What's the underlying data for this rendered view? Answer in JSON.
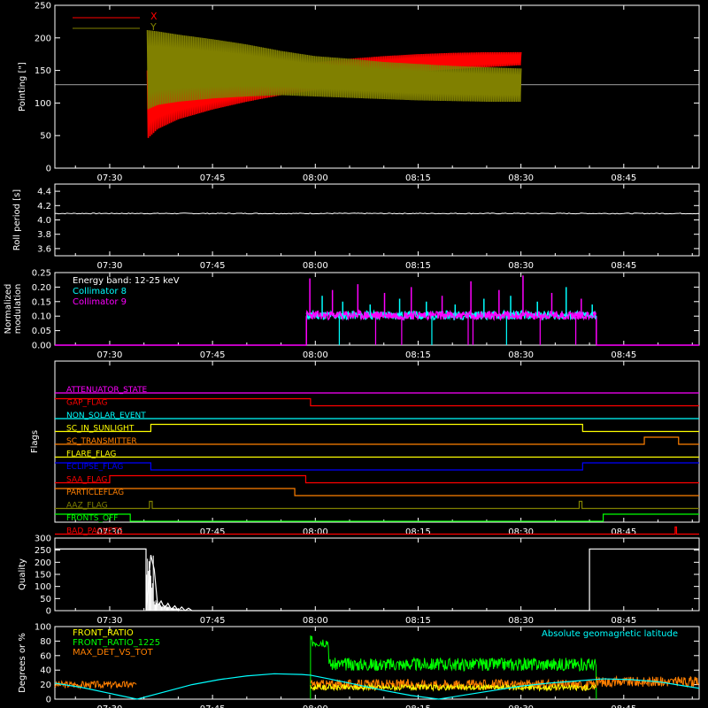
{
  "time_ticks": [
    "07:30",
    "07:45",
    "08:00",
    "08:15",
    "08:30",
    "08:45"
  ],
  "time_range_min": [
    442,
    536
  ],
  "colors": {
    "axis": "#ffffff",
    "red": "#ff0000",
    "olive": "#808000",
    "cyan": "#00ffff",
    "magenta": "#ff00ff",
    "green": "#00ff00",
    "orange": "#ff7f00",
    "yellow": "#ffff00",
    "blue": "#0000ff",
    "white": "#ffffff"
  },
  "chart_data": [
    {
      "id": "pointing",
      "type": "line",
      "ylabel": "Pointing [\"]",
      "ylim": [
        0,
        250
      ],
      "yticks": [
        0,
        50,
        100,
        150,
        200,
        250
      ],
      "legend": [
        {
          "name": "X",
          "color": "#ff0000"
        },
        {
          "name": "Y",
          "color": "#808000"
        }
      ],
      "legend_placement": "top-left",
      "reference_line": 128,
      "series": [
        {
          "name": "X",
          "color": "#ff0000",
          "x": [
            455.5,
            457,
            460,
            465,
            470,
            475,
            480,
            485,
            490,
            495,
            500,
            505,
            510
          ],
          "low": [
            45,
            60,
            75,
            90,
            102,
            112,
            120,
            130,
            140,
            148,
            152,
            155,
            158
          ],
          "high": [
            150,
            148,
            145,
            143,
            148,
            155,
            162,
            168,
            172,
            175,
            177,
            178,
            178
          ]
        },
        {
          "name": "Y",
          "color": "#808000",
          "x": [
            455.5,
            457,
            460,
            465,
            470,
            475,
            480,
            485,
            490,
            495,
            500,
            505,
            510
          ],
          "low": [
            90,
            97,
            102,
            107,
            110,
            112,
            110,
            108,
            106,
            104,
            103,
            102,
            102
          ],
          "high": [
            212,
            210,
            205,
            198,
            190,
            180,
            172,
            168,
            163,
            160,
            157,
            155,
            153
          ]
        }
      ]
    },
    {
      "id": "roll",
      "type": "line",
      "ylabel": "Roll period [s]",
      "ylim": [
        3.5,
        4.5
      ],
      "yticks": [
        3.6,
        3.8,
        4.0,
        4.2,
        4.4
      ],
      "series": [
        {
          "color": "#ffffff",
          "x": [
            442,
            536
          ],
          "y": [
            4.09,
            4.09
          ]
        }
      ]
    },
    {
      "id": "modulation",
      "type": "line",
      "ylabel": "Normalized modulation",
      "ylim": [
        0,
        0.25
      ],
      "yticks": [
        0.0,
        0.05,
        0.1,
        0.15,
        0.2,
        0.25
      ],
      "annotation": "Energy band: 12-25 keV",
      "legend": [
        {
          "name": "Collimator 8",
          "color": "#00ffff"
        },
        {
          "name": "Collimator 9",
          "color": "#ff00ff"
        }
      ],
      "legend_placement": "top-left",
      "active_range": [
        478.7,
        521
      ],
      "baseline": 0.1,
      "spikes": [
        {
          "x": 479.2,
          "y": 0.23
        },
        {
          "x": 481.0,
          "y": 0.17
        },
        {
          "x": 482.5,
          "y": 0.19
        },
        {
          "x": 484.0,
          "y": 0.15
        },
        {
          "x": 486.2,
          "y": 0.21
        },
        {
          "x": 488.0,
          "y": 0.14
        },
        {
          "x": 490.1,
          "y": 0.18
        },
        {
          "x": 492.3,
          "y": 0.16
        },
        {
          "x": 494.0,
          "y": 0.2
        },
        {
          "x": 496.2,
          "y": 0.15
        },
        {
          "x": 498.5,
          "y": 0.17
        },
        {
          "x": 500.4,
          "y": 0.14
        },
        {
          "x": 502.7,
          "y": 0.22
        },
        {
          "x": 504.6,
          "y": 0.16
        },
        {
          "x": 506.8,
          "y": 0.19
        },
        {
          "x": 508.5,
          "y": 0.17
        },
        {
          "x": 510.3,
          "y": 0.24
        },
        {
          "x": 512.4,
          "y": 0.15
        },
        {
          "x": 514.5,
          "y": 0.18
        },
        {
          "x": 516.6,
          "y": 0.2
        },
        {
          "x": 518.8,
          "y": 0.16
        },
        {
          "x": 520.4,
          "y": 0.14
        }
      ],
      "dips": [
        {
          "x": 483.5,
          "y": 0.0
        },
        {
          "x": 488.8,
          "y": 0.0
        },
        {
          "x": 492.6,
          "y": 0.0
        },
        {
          "x": 497.0,
          "y": 0.0
        },
        {
          "x": 502.3,
          "y": 0.0
        },
        {
          "x": 503.0,
          "y": 0.0
        },
        {
          "x": 507.9,
          "y": 0.0
        },
        {
          "x": 512.8,
          "y": 0.0
        },
        {
          "x": 518.0,
          "y": 0.0
        }
      ]
    },
    {
      "id": "flags",
      "type": "line",
      "ylabel": "Flags",
      "flags": [
        {
          "name": "ATTENUATOR_STATE",
          "color": "#ff00ff",
          "segments": [
            [
              442,
              0
            ],
            [
              536,
              0
            ]
          ]
        },
        {
          "name": "GAP_FLAG",
          "color": "#ff0000",
          "segments": [
            [
              442,
              1
            ],
            [
              479.3,
              1
            ],
            [
              479.3,
              0
            ],
            [
              536,
              0
            ]
          ]
        },
        {
          "name": "NON_SOLAR_EVENT",
          "color": "#00ffff",
          "segments": [
            [
              442,
              0
            ],
            [
              536,
              0
            ]
          ]
        },
        {
          "name": "SC_IN_SUNLIGHT",
          "color": "#ffff00",
          "segments": [
            [
              442,
              0
            ],
            [
              456,
              0
            ],
            [
              456,
              1
            ],
            [
              519,
              1
            ],
            [
              519,
              0
            ],
            [
              536,
              0
            ]
          ]
        },
        {
          "name": "SC_TRANSMITTER",
          "color": "#ff7f00",
          "segments": [
            [
              442,
              0
            ],
            [
              528,
              0
            ],
            [
              528,
              1
            ],
            [
              533,
              1
            ],
            [
              533,
              0
            ],
            [
              536,
              0
            ]
          ]
        },
        {
          "name": "FLARE_FLAG",
          "color": "#ffff00",
          "segments": [
            [
              442,
              0
            ],
            [
              536,
              0
            ]
          ]
        },
        {
          "name": "ECLIPSE_FLAG",
          "color": "#0000ff",
          "segments": [
            [
              442,
              1
            ],
            [
              456,
              1
            ],
            [
              456,
              0
            ],
            [
              519,
              0
            ],
            [
              519,
              1
            ],
            [
              536,
              1
            ]
          ]
        },
        {
          "name": "SAA_FLAG",
          "color": "#ff0000",
          "segments": [
            [
              442,
              0
            ],
            [
              450,
              0
            ],
            [
              450,
              1
            ],
            [
              478.6,
              1
            ],
            [
              478.6,
              0
            ],
            [
              536,
              0
            ]
          ]
        },
        {
          "name": "PARTICLEFLAG",
          "color": "#ff7f00",
          "segments": [
            [
              442,
              1
            ],
            [
              477,
              1
            ],
            [
              477,
              0
            ],
            [
              536,
              0
            ]
          ]
        },
        {
          "name": "AAZ_FLAG",
          "color": "#808000",
          "segments": [
            [
              442,
              0
            ],
            [
              455.8,
              0
            ],
            [
              455.8,
              1
            ],
            [
              456.2,
              1
            ],
            [
              456.2,
              0
            ],
            [
              518.5,
              0
            ],
            [
              518.5,
              1
            ],
            [
              518.9,
              1
            ],
            [
              518.9,
              0
            ],
            [
              536,
              0
            ]
          ]
        },
        {
          "name": "FRONTS_OFF",
          "color": "#00ff00",
          "segments": [
            [
              442,
              1
            ],
            [
              453,
              1
            ],
            [
              453,
              0
            ],
            [
              522,
              0
            ],
            [
              522,
              1
            ],
            [
              536,
              1
            ]
          ]
        },
        {
          "name": "BAD_PACKETS",
          "color": "#ff0000",
          "segments": [
            [
              442,
              0
            ],
            [
              532.5,
              0
            ],
            [
              532.5,
              1
            ],
            [
              532.7,
              1
            ],
            [
              532.7,
              0
            ],
            [
              536,
              0
            ]
          ]
        }
      ]
    },
    {
      "id": "quality",
      "type": "line",
      "ylabel": "Quality",
      "ylim": [
        0,
        300
      ],
      "yticks": [
        0,
        50,
        100,
        150,
        200,
        250,
        300
      ],
      "series": [
        {
          "color": "#ffffff",
          "x": [
            442,
            455.3,
            455.3,
            456,
            456.5,
            457,
            457.5,
            458,
            458.5,
            459,
            459.5,
            460,
            460.5,
            461,
            461.5,
            462,
            462.5,
            520,
            520,
            536
          ],
          "y": [
            255,
            255,
            0,
            230,
            170,
            20,
            40,
            10,
            30,
            5,
            20,
            0,
            15,
            0,
            10,
            0,
            0,
            0,
            255,
            255
          ]
        }
      ]
    },
    {
      "id": "ratios",
      "type": "line",
      "ylabel": "Degrees or %",
      "ylim": [
        0,
        100
      ],
      "yticks": [
        0,
        20,
        40,
        60,
        80,
        100
      ],
      "legend": [
        {
          "name": "FRONT_RATIO",
          "color": "#ffff00"
        },
        {
          "name": "FRONT_RATIO_1225",
          "color": "#00ff00"
        },
        {
          "name": "MAX_DET_VS_TOT",
          "color": "#ff7f00"
        }
      ],
      "legend_placement": "top-left",
      "annotation": "Absolute geomagnetic latitude",
      "series": [
        {
          "name": "Absolute geomagnetic latitude",
          "color": "#00ffff",
          "x": [
            442,
            446,
            450,
            454,
            458,
            462,
            466,
            470,
            474,
            478,
            479.3,
            482,
            486,
            490,
            494,
            498,
            502,
            506,
            510,
            514,
            518,
            522,
            526,
            530,
            534,
            536
          ],
          "y": [
            22,
            16,
            8,
            0,
            10,
            20,
            27,
            32,
            35,
            34,
            33,
            28,
            20,
            12,
            5,
            0,
            6,
            12,
            18,
            22,
            25,
            28,
            27,
            24,
            18,
            15
          ]
        },
        {
          "name": "FRONT_RATIO_1225",
          "color": "#00ff00",
          "x": [
            479.3,
            479.3,
            482,
            485,
            490,
            495,
            500,
            505,
            510,
            515,
            521,
            521
          ],
          "y": [
            0,
            88,
            50,
            50,
            50,
            50,
            50,
            50,
            50,
            50,
            50,
            0
          ]
        },
        {
          "name": "MAX_DET_VS_TOT",
          "color": "#ff7f00",
          "x": [
            442,
            454,
            454,
            479.3,
            479.3,
            536
          ],
          "y": [
            22,
            22,
            0,
            0,
            25,
            22
          ]
        },
        {
          "name": "FRONT_RATIO",
          "color": "#ffff00",
          "x": [
            479.3,
            482,
            490,
            500,
            510,
            521
          ],
          "y": [
            20,
            17,
            15,
            15,
            15,
            15
          ]
        }
      ]
    }
  ]
}
